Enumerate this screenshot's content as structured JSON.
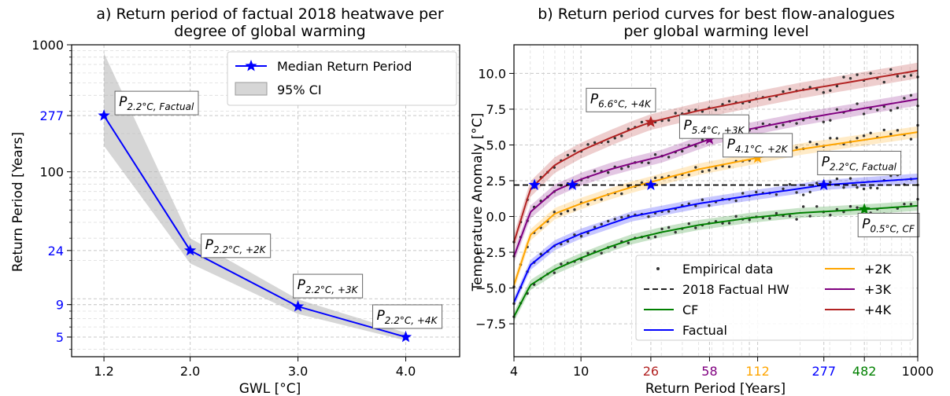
{
  "chart_data": [
    {
      "type": "line",
      "title_line1": "a) Return period of factual 2018 heatwave per",
      "title_line2": "degree of global warming",
      "xlabel": "GWL [°C]",
      "ylabel": "Return Period [Years]",
      "yscale": "log",
      "ylim": [
        3.5,
        1000
      ],
      "xlim": [
        0.9,
        4.5
      ],
      "grid": true,
      "legend_position": "top-right",
      "x": [
        1.2,
        2.0,
        3.0,
        4.0
      ],
      "x_tick_labels": [
        "1.2",
        "2.0",
        "3.0",
        "4.0"
      ],
      "y_ticks_black": [
        {
          "value": 1000,
          "label": "1000"
        },
        {
          "value": 100,
          "label": "100"
        }
      ],
      "y_ticks_blue": [
        {
          "value": 277,
          "label": "277"
        },
        {
          "value": 24,
          "label": "24"
        },
        {
          "value": 9,
          "label": "9"
        },
        {
          "value": 5,
          "label": "5"
        }
      ],
      "series": [
        {
          "name": "Median Return Period",
          "values": [
            277,
            24,
            8.7,
            5
          ],
          "color": "#0000ff"
        }
      ],
      "ci": {
        "name": "95% CI",
        "lower": [
          160,
          19,
          7.6,
          4.7
        ],
        "upper": [
          860,
          30,
          9.9,
          5.4
        ],
        "color": "#b4b4b4"
      },
      "annotations": [
        {
          "main": "P",
          "sub": "2.2°C, Factual",
          "x": 1.2,
          "y": 277
        },
        {
          "main": "P",
          "sub": "2.2°C, +2K",
          "x": 2.0,
          "y": 24
        },
        {
          "main": "P",
          "sub": "2.2°C, +3K",
          "x": 3.0,
          "y": 8.7
        },
        {
          "main": "P",
          "sub": "2.2°C, +4K",
          "x": 4.0,
          "y": 5
        }
      ]
    },
    {
      "type": "line",
      "title_line1": "b) Return period curves for best flow-analogues",
      "title_line2": "per global warming level",
      "xlabel": "Return Period [Years]",
      "ylabel": "Temperature Anomaly [°C]",
      "xscale": "log",
      "xlim": [
        4,
        1000
      ],
      "ylim": [
        -9.8,
        12.0
      ],
      "grid": true,
      "legend_position": "bottom-right",
      "x_ticks": [
        {
          "value": 4,
          "label": "4",
          "color": "#000000"
        },
        {
          "value": 10,
          "label": "10",
          "color": "#000000"
        },
        {
          "value": 26,
          "label": "26",
          "color": "#b22222"
        },
        {
          "value": 58,
          "label": "58",
          "color": "#800080"
        },
        {
          "value": 112,
          "label": "112",
          "color": "#ffa500"
        },
        {
          "value": 277,
          "label": "277",
          "color": "#0000ff"
        },
        {
          "value": 482,
          "label": "482",
          "color": "#008000"
        },
        {
          "value": 1000,
          "label": "1000",
          "color": "#000000"
        }
      ],
      "y_ticks": [
        -7.5,
        -5.0,
        -2.5,
        0.0,
        2.5,
        5.0,
        7.5,
        10.0
      ],
      "y_tick_labels": [
        "−7.5",
        "−5.0",
        "−2.5",
        "0.0",
        "2.5",
        "5.0",
        "7.5",
        "10.0"
      ],
      "hline": {
        "name": "2018 Factual HW",
        "y": 2.2
      },
      "series": [
        {
          "name": "CF",
          "color": "#008000",
          "x": [
            4,
            5,
            7,
            10,
            15,
            20,
            30,
            50,
            100,
            200,
            482,
            1000
          ],
          "values": [
            -7.0,
            -4.8,
            -3.7,
            -2.9,
            -2.1,
            -1.6,
            -1.1,
            -0.6,
            -0.1,
            0.25,
            0.5,
            0.75
          ],
          "ci_halfwidth": 0.35
        },
        {
          "name": "Factual",
          "color": "#0000ff",
          "x": [
            4,
            5,
            7,
            10,
            15,
            20,
            30,
            50,
            100,
            200,
            277,
            1000
          ],
          "values": [
            -6.0,
            -3.4,
            -2.0,
            -1.2,
            -0.5,
            0.0,
            0.4,
            0.9,
            1.45,
            1.95,
            2.2,
            2.65
          ],
          "ci_halfwidth": 0.35
        },
        {
          "name": "+2K",
          "color": "#ffa500",
          "x": [
            4,
            5,
            7,
            10,
            15,
            20,
            30,
            50,
            112,
            200,
            1000
          ],
          "values": [
            -4.8,
            -1.3,
            0.2,
            0.9,
            1.6,
            2.05,
            2.6,
            3.3,
            4.1,
            4.7,
            5.9
          ],
          "ci_halfwidth": 0.4
        },
        {
          "name": "+3K",
          "color": "#800080",
          "x": [
            4,
            5,
            7,
            10,
            15,
            20,
            30,
            58,
            100,
            200,
            1000
          ],
          "values": [
            -2.8,
            0.3,
            1.8,
            2.6,
            3.3,
            3.7,
            4.2,
            5.4,
            6.1,
            6.8,
            8.2
          ],
          "ci_halfwidth": 0.45
        },
        {
          "name": "+4K",
          "color": "#b22222",
          "x": [
            4,
            5,
            7,
            10,
            15,
            20,
            26,
            50,
            100,
            200,
            1000
          ],
          "values": [
            -1.8,
            1.9,
            3.6,
            4.6,
            5.5,
            6.1,
            6.6,
            7.4,
            8.1,
            8.8,
            10.2
          ],
          "ci_halfwidth": 0.55
        }
      ],
      "empirical_name": "Empirical data",
      "markers": [
        {
          "series": "CF",
          "x": 482,
          "y": 0.5
        },
        {
          "series": "Factual",
          "x": 277,
          "y": 2.2
        },
        {
          "series": "+2K",
          "x": 112,
          "y": 4.1
        },
        {
          "series": "+3K",
          "x": 58,
          "y": 5.4
        },
        {
          "series": "+4K",
          "x": 26,
          "y": 6.6
        },
        {
          "series": "hline",
          "x": 5.3,
          "y": 2.2
        },
        {
          "series": "hline",
          "x": 8.9,
          "y": 2.2
        },
        {
          "series": "hline",
          "x": 26,
          "y": 2.2
        }
      ],
      "annotations": [
        {
          "main": "P",
          "sub": "6.6°C, +4K",
          "x": 26,
          "y": 6.6
        },
        {
          "main": "P",
          "sub": "5.4°C, +3K",
          "x": 58,
          "y": 5.4
        },
        {
          "main": "P",
          "sub": "4.1°C, +2K",
          "x": 112,
          "y": 4.1
        },
        {
          "main": "P",
          "sub": "2.2°C, Factual",
          "x": 277,
          "y": 2.2
        },
        {
          "main": "P",
          "sub": "0.5°C, CF",
          "x": 482,
          "y": 0.5
        }
      ]
    }
  ]
}
